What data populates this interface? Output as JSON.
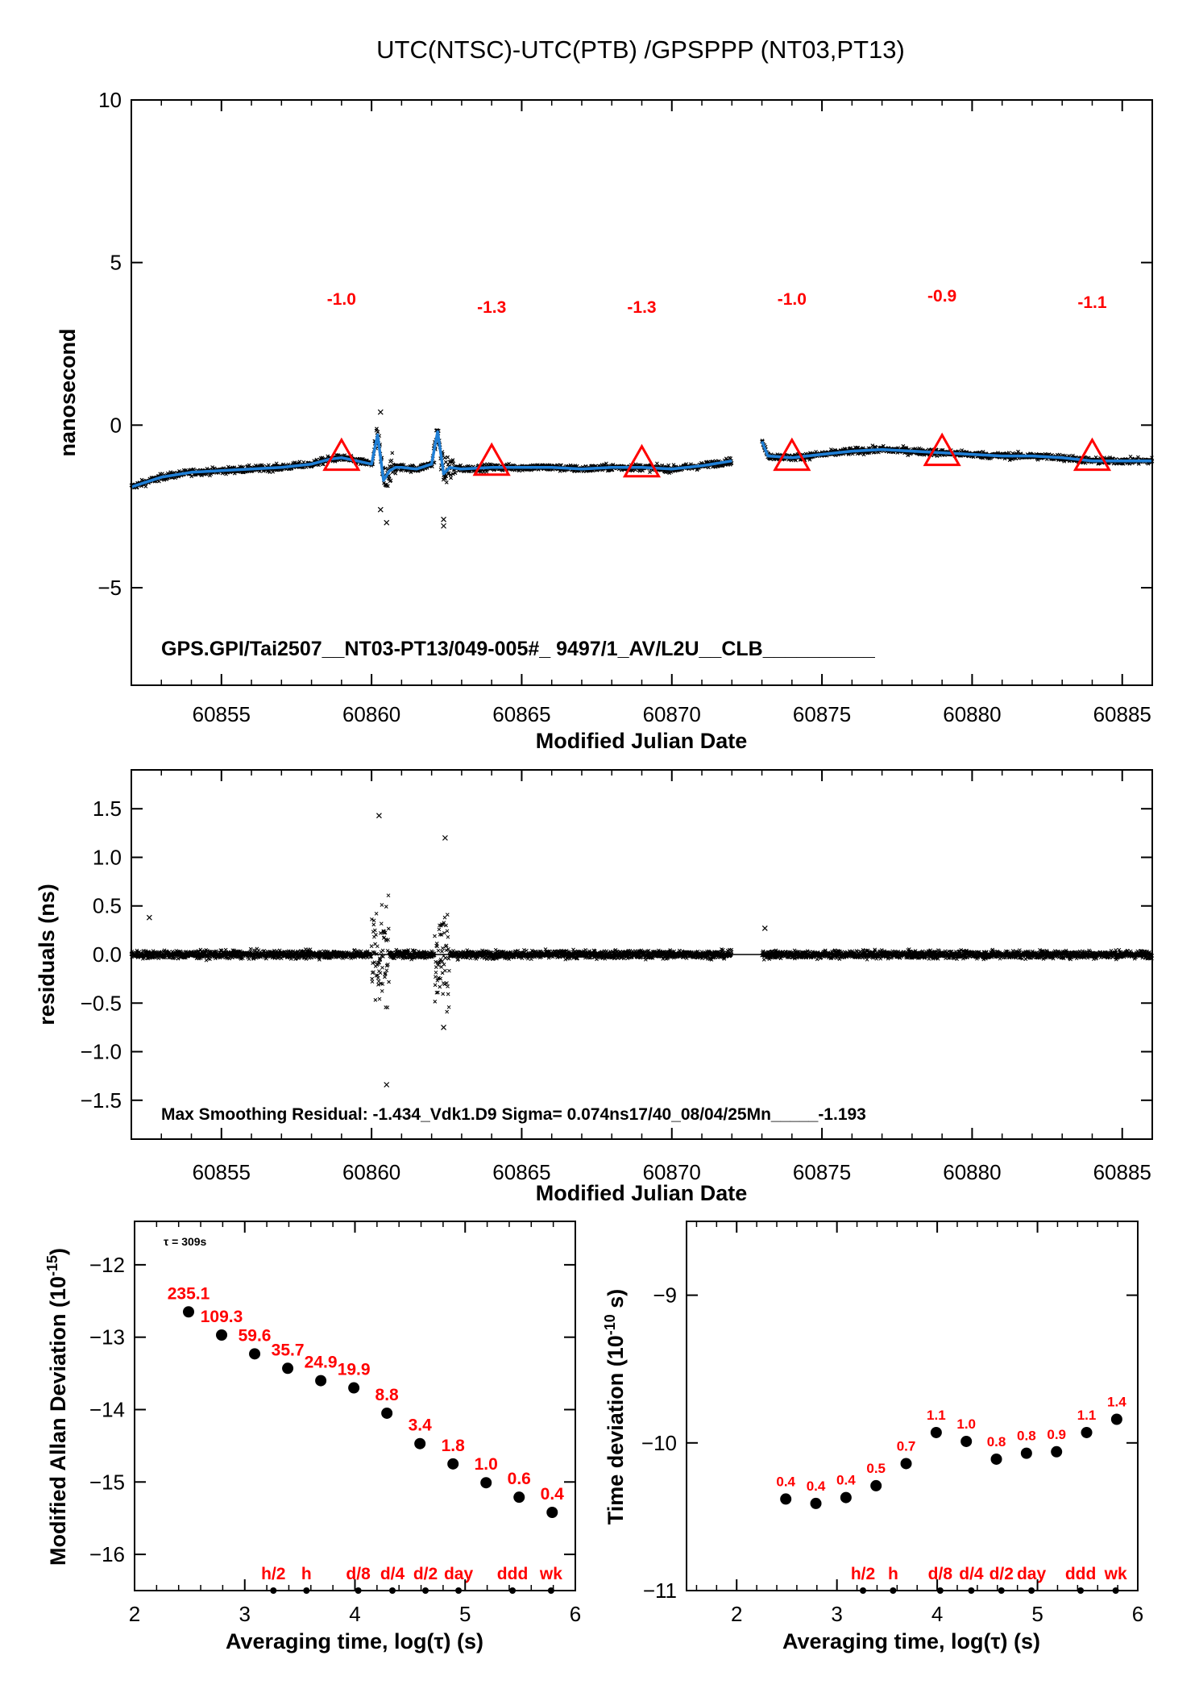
{
  "title": "UTC(NTSC)-UTC(PTB)  /GPSPPP  (NT03,PT13)",
  "chart_data": [
    {
      "type": "line",
      "xlabel": "Modified Julian Date",
      "ylabel": "nanosecond",
      "xlim": [
        60852.0,
        60886.0
      ],
      "ylim": [
        -8.0,
        10.0
      ],
      "xticks": [
        60855,
        60860,
        60865,
        60870,
        60875,
        60880,
        60885
      ],
      "yticks": [
        -5,
        0,
        5,
        10
      ],
      "ytick_labels": [
        "−5",
        "0",
        "5",
        "10"
      ],
      "series": [
        {
          "x": [
            60852.0,
            60852.5,
            60853.0,
            60854.0,
            60855.0,
            60856.0,
            60857.0,
            60858.0,
            60858.6,
            60859.0,
            60859.5,
            60860.0,
            60860.2,
            60860.4,
            60860.6,
            60860.8,
            60861.0,
            60861.5,
            60862.0,
            60862.2,
            60862.4,
            60862.6,
            60863.0,
            60864.0,
            60865.0,
            60866.0,
            60867.0,
            60868.0,
            60869.0,
            60870.0,
            60871.0,
            60872.0
          ],
          "y": [
            -1.9,
            -1.75,
            -1.6,
            -1.45,
            -1.4,
            -1.35,
            -1.3,
            -1.2,
            -1.05,
            -1.0,
            -1.1,
            -1.2,
            -0.3,
            -1.7,
            -1.4,
            -1.3,
            -1.3,
            -1.35,
            -1.2,
            -0.2,
            -1.5,
            -1.3,
            -1.35,
            -1.3,
            -1.3,
            -1.3,
            -1.35,
            -1.3,
            -1.3,
            -1.35,
            -1.25,
            -1.1
          ]
        },
        {
          "x": [
            60873.0,
            60873.2,
            60874.0,
            60875.0,
            60876.0,
            60877.0,
            60878.0,
            60879.0,
            60880.0,
            60881.0,
            60882.0,
            60883.0,
            60884.0,
            60885.0,
            60886.0
          ],
          "y": [
            -0.5,
            -0.95,
            -1.0,
            -0.9,
            -0.8,
            -0.75,
            -0.8,
            -0.85,
            -0.9,
            -0.95,
            -0.95,
            -1.0,
            -1.1,
            -1.1,
            -1.1
          ]
        }
      ],
      "markers": {
        "x": [
          60859.0,
          60864.0,
          60869.0,
          60874.0,
          60879.0,
          60884.0
        ],
        "y": [
          -0.95,
          -1.1,
          -1.15,
          -0.95,
          -0.8,
          -0.95
        ]
      },
      "marker_labels": [
        {
          "text": "-1.0",
          "x": 60859.0,
          "y": 3.7
        },
        {
          "text": "-1.3",
          "x": 60864.0,
          "y": 3.45
        },
        {
          "text": "-1.3",
          "x": 60869.0,
          "y": 3.45
        },
        {
          "text": "-1.0",
          "x": 60874.0,
          "y": 3.7
        },
        {
          "text": "-0.9",
          "x": 60879.0,
          "y": 3.8
        },
        {
          "text": "-1.1",
          "x": 60884.0,
          "y": 3.6
        }
      ],
      "annotation": "GPS.GPI/Tai2507__NT03-PT13/049-005#_  9497/1_AV/L2U__CLB__________"
    },
    {
      "type": "scatter",
      "xlabel": "Modified Julian Date",
      "ylabel": "residuals (ns)",
      "xlim": [
        60852.0,
        60886.0
      ],
      "ylim": [
        -1.9,
        1.9
      ],
      "xticks": [
        60855,
        60860,
        60865,
        60870,
        60875,
        60880,
        60885
      ],
      "yticks": [
        -1.5,
        -1.0,
        -0.5,
        0.0,
        0.5,
        1.0,
        1.5
      ],
      "ytick_labels": [
        "−1.5",
        "−1.0",
        "−0.5",
        "0.0",
        "0.5",
        "1.0",
        "1.5"
      ],
      "annotation": "Max Smoothing Residual: -1.434_Vdk1.D9  Sigma= 0.074ns17/40_08/04/25Mn_____-1.193"
    },
    {
      "type": "scatter",
      "xlabel": "Averaging time, log(τ) (s)",
      "ylabel": "Modified Allan Deviation (10⁻¹⁵)",
      "xlim": [
        2,
        6
      ],
      "ylim": [
        -16.5,
        -11.4
      ],
      "xticks": [
        2,
        3,
        4,
        5,
        6
      ],
      "yticks": [
        -16,
        -15,
        -14,
        -13,
        -12
      ],
      "ytick_labels": [
        "−16",
        "−15",
        "−14",
        "−13",
        "−12"
      ],
      "tau_note": "τ = 309s",
      "x": [
        2.49,
        2.79,
        3.09,
        3.39,
        3.69,
        3.99,
        4.29,
        4.59,
        4.89,
        5.19,
        5.49,
        5.79
      ],
      "y": [
        -12.65,
        -12.97,
        -13.23,
        -13.43,
        -13.6,
        -13.7,
        -14.05,
        -14.47,
        -14.75,
        -15.01,
        -15.21,
        -15.42
      ],
      "labels": [
        "235.1",
        "109.3",
        "59.6",
        "35.7",
        "24.9",
        "19.9",
        "8.8",
        "3.4",
        "1.8",
        "1.0",
        "0.6",
        "0.4"
      ],
      "tau_markers": {
        "x": [
          3.26,
          3.56,
          4.03,
          4.34,
          4.64,
          4.94,
          5.43,
          5.78
        ],
        "labels": [
          "h/2",
          "h",
          "d/8",
          "d/4",
          "d/2",
          "day",
          "ddd",
          "wk"
        ]
      }
    },
    {
      "type": "scatter",
      "xlabel": "Averaging time, log(τ) (s)",
      "ylabel": "Time deviation (10⁻¹⁰ s)",
      "xlim": [
        1.5,
        6.0
      ],
      "ylim": [
        -11.0,
        -8.5
      ],
      "xticks": [
        2,
        3,
        4,
        5,
        6
      ],
      "yticks": [
        -11,
        -10,
        -9
      ],
      "ytick_labels": [
        "−11",
        "−10",
        "−9"
      ],
      "x": [
        2.49,
        2.79,
        3.09,
        3.39,
        3.69,
        3.99,
        4.29,
        4.59,
        4.89,
        5.19,
        5.49,
        5.79
      ],
      "y": [
        -10.38,
        -10.41,
        -10.37,
        -10.29,
        -10.14,
        -9.93,
        -9.99,
        -10.11,
        -10.07,
        -10.06,
        -9.93,
        -9.84
      ],
      "labels": [
        "0.4",
        "0.4",
        "0.4",
        "0.5",
        "0.7",
        "1.1",
        "1.0",
        "0.8",
        "0.8",
        "0.9",
        "1.1",
        "1.4"
      ],
      "tau_markers": {
        "x": [
          3.26,
          3.56,
          4.03,
          4.34,
          4.64,
          4.94,
          5.43,
          5.78
        ],
        "labels": [
          "h/2",
          "h",
          "d/8",
          "d/4",
          "d/2",
          "day",
          "ddd",
          "wk"
        ]
      }
    }
  ],
  "colors": {
    "fit_line": "#1f7fd6",
    "markers": "#ff0000",
    "points": "#000000"
  }
}
